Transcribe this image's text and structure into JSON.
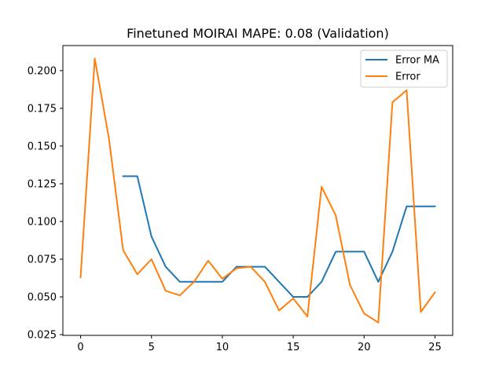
{
  "chart_data": {
    "type": "line",
    "title": "Finetuned MOIRAI MAPE: 0.08 (Validation)",
    "xlabel": "",
    "ylabel": "",
    "xlim": [
      -1.25,
      26.25
    ],
    "ylim": [
      0.0245,
      0.2166
    ],
    "xticks": [
      0,
      5,
      10,
      15,
      20,
      25
    ],
    "xtick_labels": [
      "0",
      "5",
      "10",
      "15",
      "20",
      "25"
    ],
    "yticks": [
      0.025,
      0.05,
      0.075,
      0.1,
      0.125,
      0.15,
      0.175,
      0.2
    ],
    "ytick_labels": [
      "0.025",
      "0.050",
      "0.075",
      "0.100",
      "0.125",
      "0.150",
      "0.175",
      "0.200"
    ],
    "grid": false,
    "legend_position": "top-right",
    "series": [
      {
        "name": "Error MA",
        "color": "#1f77b4",
        "x": [
          3,
          4,
          5,
          6,
          7,
          8,
          9,
          10,
          11,
          12,
          13,
          14,
          15,
          16,
          17,
          18,
          19,
          20,
          21,
          22,
          23,
          24,
          25
        ],
        "values": [
          0.13,
          0.13,
          0.09,
          0.07,
          0.06,
          0.06,
          0.06,
          0.06,
          0.07,
          0.07,
          0.07,
          0.06,
          0.05,
          0.05,
          0.06,
          0.08,
          0.08,
          0.08,
          0.06,
          0.08,
          0.11,
          0.11,
          0.11
        ]
      },
      {
        "name": "Error",
        "color": "#ff7f0e",
        "x": [
          0,
          1,
          2,
          3,
          4,
          5,
          6,
          7,
          8,
          9,
          10,
          11,
          12,
          13,
          14,
          15,
          16,
          17,
          18,
          19,
          20,
          21,
          22,
          23,
          24,
          25
        ],
        "values": [
          0.063,
          0.208,
          0.155,
          0.081,
          0.065,
          0.075,
          0.054,
          0.051,
          0.06,
          0.074,
          0.062,
          0.069,
          0.07,
          0.06,
          0.041,
          0.049,
          0.037,
          0.123,
          0.104,
          0.058,
          0.039,
          0.033,
          0.179,
          0.187,
          0.04,
          0.053
        ]
      }
    ]
  }
}
